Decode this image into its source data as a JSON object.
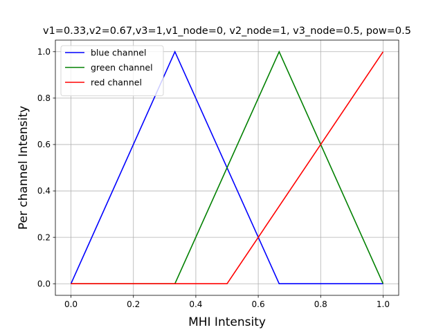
{
  "chart_data": {
    "type": "line",
    "title": "v1=0.33,v2=0.67,v3=1,v1_node=0, v2_node=1, v3_node=0.5, pow=0.5",
    "xlabel": "MHI Intensity",
    "ylabel": "Per channel Intensity",
    "xlim": [
      -0.05,
      1.05
    ],
    "ylim": [
      -0.05,
      1.05
    ],
    "xticks": [
      0.0,
      0.2,
      0.4,
      0.6,
      0.8,
      1.0
    ],
    "xtick_labels": [
      "0.0",
      "0.2",
      "0.4",
      "0.6",
      "0.8",
      "1.0"
    ],
    "yticks": [
      0.0,
      0.2,
      0.4,
      0.6,
      0.8,
      1.0
    ],
    "ytick_labels": [
      "0.0",
      "0.2",
      "0.4",
      "0.6",
      "0.8",
      "1.0"
    ],
    "grid": true,
    "legend_position": "top-left",
    "series": [
      {
        "name": "blue channel",
        "color": "#0000ff",
        "x": [
          0.0,
          0.333,
          0.667,
          1.0
        ],
        "y": [
          0.0,
          1.0,
          0.0,
          0.0
        ]
      },
      {
        "name": "green channel",
        "color": "#008000",
        "x": [
          0.0,
          0.333,
          0.667,
          1.0
        ],
        "y": [
          0.0,
          0.0,
          1.0,
          0.0
        ]
      },
      {
        "name": "red channel",
        "color": "#ff0000",
        "x": [
          0.0,
          0.5,
          1.0
        ],
        "y": [
          0.0,
          0.0,
          1.0
        ]
      }
    ]
  }
}
